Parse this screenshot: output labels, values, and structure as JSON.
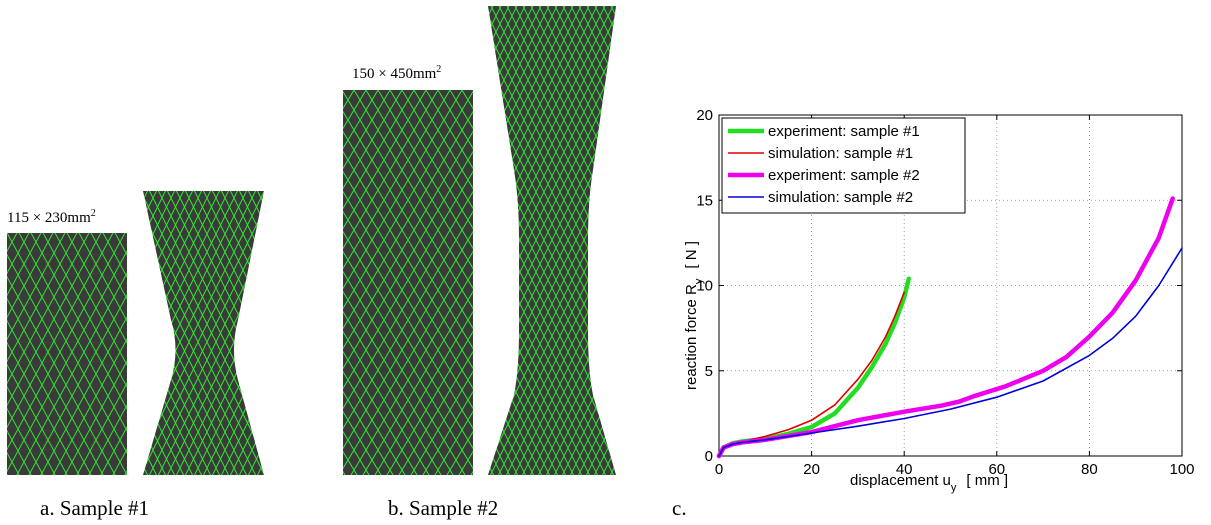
{
  "panels": {
    "a": {
      "caption": "a. Sample #1",
      "dimension_prefix": "115 × 230mm",
      "dimension_sup": "2"
    },
    "b": {
      "caption": "b. Sample #2",
      "dimension_prefix": "150 × 450mm",
      "dimension_sup": "2"
    },
    "c": {
      "caption": "c."
    }
  },
  "colors": {
    "mesh_background": "#3a3a3a",
    "mesh_lines": "#2ee82e"
  },
  "chart_data": {
    "type": "line",
    "xlabel": "displacement  u",
    "xlabel_sub": "y",
    "xlabel_unit": "[ mm ]",
    "ylabel": "reaction force  R",
    "ylabel_sub": "y",
    "ylabel_unit": "[ N ]",
    "xlim": [
      0,
      100
    ],
    "ylim": [
      0,
      20
    ],
    "xticks": [
      0,
      20,
      40,
      60,
      80,
      100
    ],
    "yticks": [
      0,
      5,
      10,
      15,
      20
    ],
    "grid": true,
    "legend_position": "top-left",
    "series": [
      {
        "name": "experiment: sample #1",
        "color": "#22dd22",
        "width": 4.5,
        "x": [
          0,
          1,
          3,
          5,
          10,
          15,
          20,
          25,
          30,
          33,
          36,
          38,
          40,
          41
        ],
        "y": [
          0,
          0.5,
          0.75,
          0.85,
          1.0,
          1.3,
          1.7,
          2.5,
          4.0,
          5.2,
          6.6,
          7.8,
          9.3,
          10.4
        ]
      },
      {
        "name": "simulation: sample #1",
        "color": "#dd0000",
        "width": 1.6,
        "x": [
          0,
          1,
          3,
          5,
          10,
          15,
          20,
          25,
          30,
          33,
          36,
          38,
          40
        ],
        "y": [
          0,
          0.5,
          0.75,
          0.85,
          1.15,
          1.55,
          2.1,
          3.0,
          4.5,
          5.6,
          7.0,
          8.2,
          9.6
        ]
      },
      {
        "name": "experiment: sample #2",
        "color": "#ee00ee",
        "width": 4.5,
        "x": [
          0,
          1,
          3,
          5,
          10,
          20,
          30,
          40,
          48,
          52,
          55,
          62,
          70,
          75,
          80,
          85,
          90,
          95,
          98
        ],
        "y": [
          0,
          0.5,
          0.7,
          0.8,
          0.95,
          1.4,
          2.1,
          2.6,
          2.95,
          3.2,
          3.5,
          4.1,
          5.0,
          5.8,
          7.0,
          8.4,
          10.3,
          12.8,
          15.1
        ]
      },
      {
        "name": "simulation: sample #2",
        "color": "#0000dd",
        "width": 1.6,
        "x": [
          0,
          1,
          3,
          5,
          10,
          20,
          30,
          40,
          50,
          60,
          70,
          80,
          85,
          90,
          95,
          100
        ],
        "y": [
          0,
          0.5,
          0.7,
          0.8,
          0.95,
          1.35,
          1.75,
          2.2,
          2.75,
          3.45,
          4.4,
          5.9,
          6.9,
          8.2,
          10.0,
          12.2
        ]
      }
    ]
  }
}
